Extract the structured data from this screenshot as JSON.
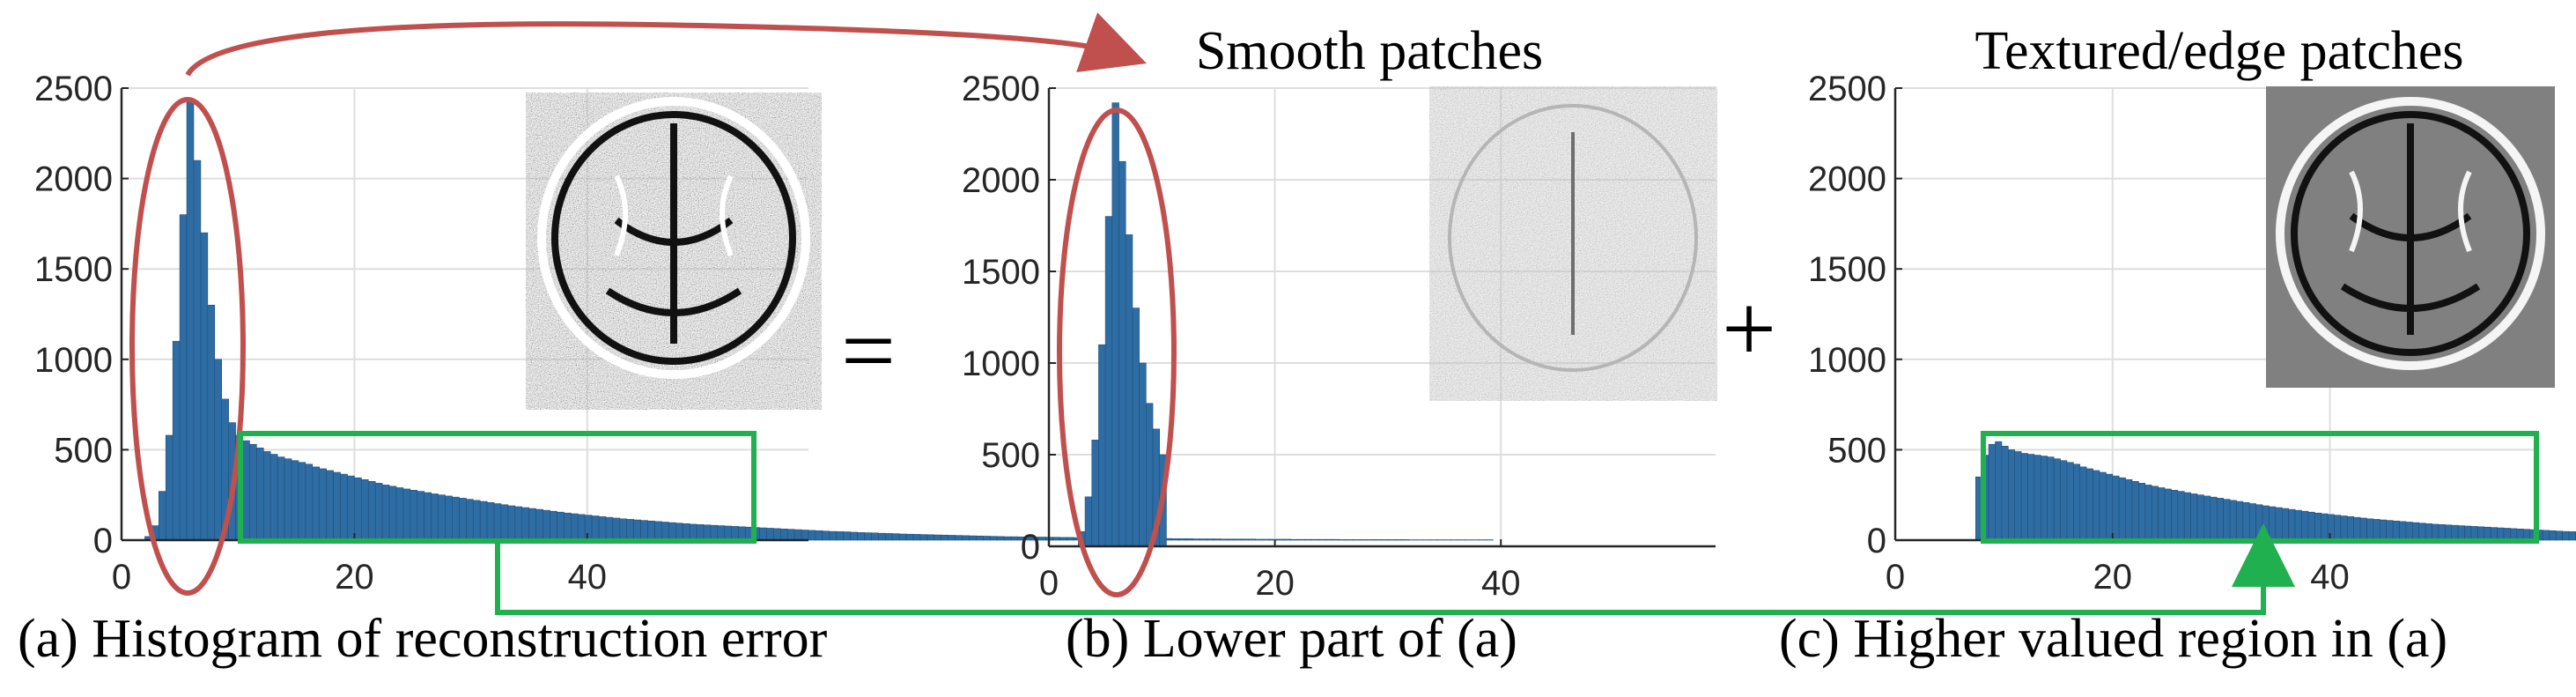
{
  "figure": {
    "operators": {
      "equals": "=",
      "plus": "+"
    },
    "colors": {
      "bar": "#2e6da4",
      "red_marker": "#c0504d",
      "green_marker": "#20b050",
      "grid": "#dedede",
      "axis": "#262626"
    }
  },
  "chart_data": [
    {
      "type": "bar",
      "title": "",
      "caption": "(a) Histogram of reconstruction error",
      "xlabel": "",
      "ylabel": "",
      "xlim": [
        0,
        59
      ],
      "ylim": [
        0,
        2500
      ],
      "xticks": [
        0,
        20,
        40
      ],
      "yticks": [
        0,
        500,
        1000,
        1500,
        2000,
        2500
      ],
      "grid": true,
      "inset_image": "brain-residual-full",
      "bin_width": 0.6,
      "x_start": 2.0,
      "values": [
        20,
        80,
        270,
        580,
        1100,
        1800,
        2420,
        2100,
        1700,
        1300,
        1000,
        780,
        650,
        580,
        550,
        530,
        510,
        490,
        475,
        460,
        450,
        440,
        430,
        420,
        405,
        395,
        385,
        375,
        365,
        355,
        345,
        335,
        325,
        315,
        305,
        298,
        290,
        283,
        276,
        270,
        263,
        256,
        250,
        244,
        238,
        232,
        226,
        220,
        214,
        208,
        202,
        196,
        190,
        185,
        180,
        175,
        170,
        165,
        160,
        155,
        150,
        146,
        142,
        138,
        134,
        130,
        126,
        122,
        118,
        115,
        112,
        109,
        106,
        103,
        100,
        97,
        94,
        91,
        88,
        86,
        84,
        82,
        80,
        78,
        76,
        74,
        72,
        70,
        68,
        66,
        64,
        62,
        60,
        58,
        56,
        54,
        52,
        50,
        48,
        47,
        46,
        44,
        42,
        41,
        40,
        38,
        37,
        36,
        34,
        33,
        32,
        31,
        30,
        29,
        28,
        27,
        26,
        25,
        24,
        23,
        22,
        21,
        20,
        19,
        19,
        18,
        18,
        17,
        17,
        16,
        16,
        15,
        15,
        14,
        14,
        13,
        13,
        12,
        12,
        11,
        11,
        10,
        10,
        10,
        9,
        9,
        9,
        8,
        8,
        8,
        7,
        7,
        7,
        7,
        6,
        6,
        6,
        6,
        6,
        5,
        5,
        5,
        5,
        5,
        4,
        4,
        4,
        4,
        4,
        4,
        4,
        3,
        3,
        3,
        3,
        3,
        3,
        3,
        3,
        3,
        3,
        2,
        2,
        2,
        2,
        2,
        2,
        2,
        2,
        2,
        2,
        2,
        2
      ]
    },
    {
      "type": "bar",
      "title": "Smooth patches",
      "caption": "(b) Lower part of (a)",
      "xlabel": "",
      "ylabel": "",
      "xlim": [
        0,
        59
      ],
      "ylim": [
        0,
        2500
      ],
      "xticks": [
        0,
        20,
        40
      ],
      "yticks": [
        0,
        500,
        1000,
        1500,
        2000,
        2500
      ],
      "grid": true,
      "inset_image": "brain-residual-smooth",
      "bin_width": 0.6,
      "x_start": 2.6,
      "values": [
        80,
        270,
        580,
        1100,
        1800,
        2420,
        2100,
        1700,
        1300,
        1000,
        780,
        640,
        500
      ]
    },
    {
      "type": "bar",
      "title": "Textured/edge patches",
      "caption": "(c) Higher valued region in (a)",
      "xlabel": "",
      "ylabel": "",
      "xlim": [
        0,
        59
      ],
      "ylim": [
        0,
        2500
      ],
      "xticks": [
        0,
        20,
        40
      ],
      "yticks": [
        0,
        500,
        1000,
        1500,
        2000,
        2500
      ],
      "grid": true,
      "inset_image": "brain-residual-textured",
      "bin_width": 0.6,
      "x_start": 7.4,
      "values": [
        350,
        470,
        530,
        545,
        520,
        500,
        490,
        480,
        475,
        470,
        465,
        460,
        450,
        440,
        430,
        420,
        405,
        395,
        385,
        375,
        365,
        355,
        345,
        335,
        325,
        315,
        305,
        298,
        290,
        283,
        276,
        270,
        263,
        256,
        250,
        244,
        238,
        232,
        226,
        220,
        214,
        208,
        202,
        196,
        190,
        185,
        180,
        175,
        170,
        165,
        160,
        155,
        150,
        146,
        142,
        138,
        134,
        130,
        126,
        122,
        118,
        115,
        112,
        109,
        106,
        103,
        100,
        97,
        94,
        91,
        88,
        86,
        84,
        82,
        80,
        78,
        76,
        74,
        72,
        70,
        68,
        66,
        64,
        62,
        60,
        58,
        56,
        54,
        52,
        50,
        48,
        47,
        46,
        44,
        42,
        41,
        40,
        38,
        37,
        36,
        34,
        33,
        32,
        31,
        30,
        29,
        28,
        27,
        26,
        25,
        24,
        23,
        22,
        21,
        20,
        19,
        19,
        18,
        18,
        17,
        17,
        16,
        16,
        15,
        15,
        14,
        14,
        13,
        13,
        12,
        12,
        11,
        11,
        10,
        10,
        10,
        9,
        9,
        9,
        8,
        8,
        8,
        7,
        7,
        7,
        7,
        6,
        6,
        6,
        6,
        6,
        5,
        5,
        5,
        5,
        5,
        4,
        4,
        4,
        4,
        4,
        4,
        4,
        3,
        3,
        3,
        3,
        3,
        3,
        3,
        3,
        3,
        3,
        2,
        2,
        2,
        2,
        2,
        2,
        2,
        2,
        2,
        2,
        2,
        2
      ]
    }
  ]
}
